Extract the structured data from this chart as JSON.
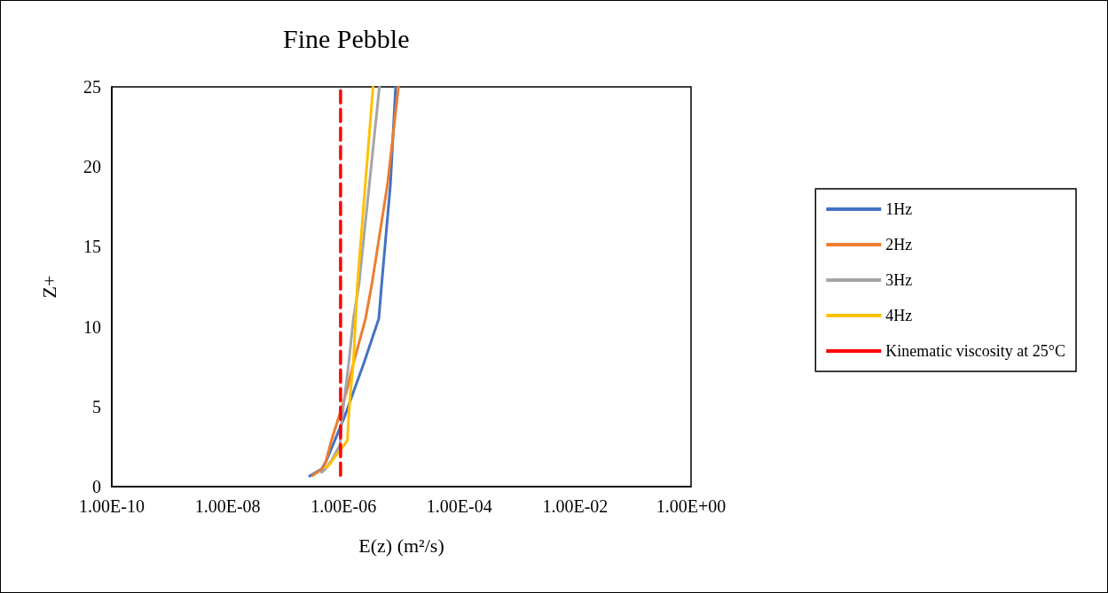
{
  "chart_data": {
    "type": "line",
    "title": "Fine Pebble",
    "xlabel": "E(z) (m²/s)",
    "ylabel": "Z+",
    "log": "x",
    "xlim": [
      1e-10,
      1
    ],
    "ylim": [
      0,
      25
    ],
    "xticks": [
      {
        "value": 1e-10,
        "label": "1.00E-10"
      },
      {
        "value": 1e-08,
        "label": "1.00E-08"
      },
      {
        "value": 1e-06,
        "label": "1.00E-06"
      },
      {
        "value": 0.0001,
        "label": "1.00E-04"
      },
      {
        "value": 0.01,
        "label": "1.00E-02"
      },
      {
        "value": 1,
        "label": "1.00E+00"
      }
    ],
    "yticks": [
      0,
      5,
      10,
      15,
      20,
      25
    ],
    "grid": false,
    "legend": "right",
    "marker": "none",
    "series": [
      {
        "name": "1Hz",
        "color": "#4472c4",
        "line_style": "solid",
        "x": [
          2.6e-07,
          4.2e-07,
          5.1e-07,
          7.1e-07,
          1.05e-06,
          1.48e-06,
          2.24e-06,
          4.07e-06,
          4.57e-06,
          6.46e-06,
          7.94e-06
        ],
        "values": [
          0.66,
          1.1,
          1.65,
          2.9,
          4.4,
          5.9,
          7.7,
          10.5,
          12.7,
          18.9,
          25
        ]
      },
      {
        "name": "2Hz",
        "color": "#ed7d31",
        "line_style": "solid",
        "x": [
          2.9e-07,
          4.3e-07,
          4.9e-07,
          6.2e-07,
          8.9e-07,
          1.12e-06,
          1.48e-06,
          2.4e-06,
          3.1e-06,
          5.75e-06,
          8.9e-06
        ],
        "values": [
          0.7,
          1.1,
          1.5,
          2.9,
          4.7,
          5.9,
          7.7,
          10.5,
          12.7,
          18.9,
          25
        ]
      },
      {
        "name": "3Hz",
        "color": "#a5a5a5",
        "line_style": "solid",
        "x": [
          4.2e-07,
          4.9e-07,
          6.2e-07,
          8.7e-07,
          8.9e-07,
          9.5e-07,
          1.07e-06,
          1.23e-06,
          1.48e-06,
          1.86e-06,
          4.17e-06
        ],
        "values": [
          0.9,
          1.1,
          1.65,
          2.6,
          3.2,
          4.4,
          5.9,
          7.7,
          10.5,
          12.7,
          25
        ]
      },
      {
        "name": "4Hz",
        "color": "#ffc000",
        "line_style": "solid",
        "x": [
          5e-07,
          5.5e-07,
          6.9e-07,
          9.8e-07,
          1.17e-06,
          1.23e-06,
          1.32e-06,
          1.48e-06,
          1.62e-06,
          1.74e-06,
          3.24e-06
        ],
        "values": [
          1.2,
          1.3,
          1.8,
          2.5,
          2.9,
          4.4,
          5.9,
          7.7,
          10.5,
          12.7,
          25
        ]
      },
      {
        "name": "Kinematic viscosity at 25°C",
        "color": "#ff0000",
        "line_style": "dashed",
        "x": [
          8.9e-07,
          8.9e-07
        ],
        "values": [
          0.7,
          25
        ]
      }
    ]
  }
}
